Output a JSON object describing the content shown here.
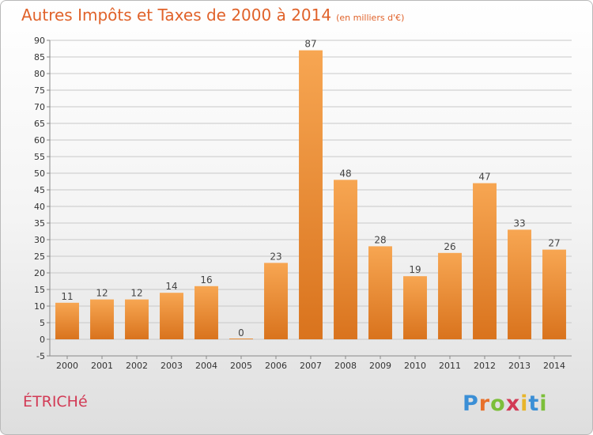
{
  "title": "Autres Impôts et Taxes de 2000 à 2014",
  "unit_note": "(en milliers d'€)",
  "town": "ÉTRICHé",
  "brand": "Proxiti",
  "colors": {
    "bar_light": "#f7a652",
    "bar_dark": "#d9731d",
    "grid": "#c8c8c8",
    "title": "#e0622a",
    "town": "#d23a55"
  },
  "chart_data": {
    "type": "bar",
    "categories": [
      "2000",
      "2001",
      "2002",
      "2003",
      "2004",
      "2005",
      "2006",
      "2007",
      "2008",
      "2009",
      "2010",
      "2011",
      "2012",
      "2013",
      "2014"
    ],
    "values": [
      11,
      12,
      12,
      14,
      16,
      0,
      23,
      87,
      48,
      28,
      19,
      26,
      47,
      33,
      27
    ],
    "title": "Autres Impôts et Taxes de 2000 à 2014",
    "ylim": [
      -5,
      90
    ],
    "yticks": [
      -5,
      0,
      5,
      10,
      15,
      20,
      25,
      30,
      35,
      40,
      45,
      50,
      55,
      60,
      65,
      70,
      75,
      80,
      85,
      90
    ],
    "grid": true,
    "legend": "none"
  }
}
